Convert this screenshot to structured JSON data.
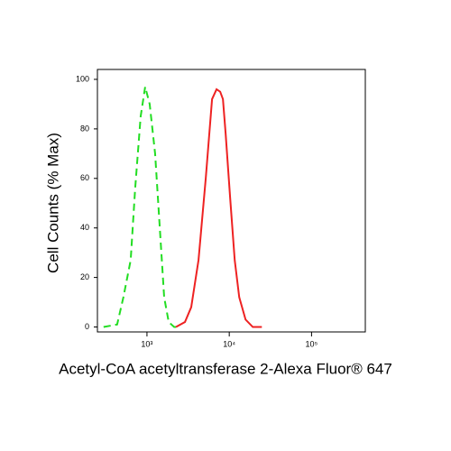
{
  "chart_data": {
    "type": "line",
    "x_label": "Acetyl-CoA acetyltransferase 2-Alexa Fluor® 647",
    "y_label": "Cell Counts (% Max)",
    "x_scale": "log",
    "xlim": [
      250,
      450000
    ],
    "ylim": [
      -2,
      104
    ],
    "xticks": [
      {
        "value": 1000,
        "label": "10³"
      },
      {
        "value": 10000,
        "label": "10⁴"
      },
      {
        "value": 100000,
        "label": "10⁵"
      }
    ],
    "yticks": [
      0,
      20,
      40,
      60,
      80,
      100
    ],
    "series": [
      {
        "color": "#22dd22",
        "line_style": "dashed",
        "x": [
          297,
          434,
          517,
          634,
          719,
          838,
          951,
          1079,
          1256,
          1426,
          1618,
          1837,
          2140,
          2550
        ],
        "values": [
          0,
          1,
          12,
          27,
          56,
          85,
          97,
          90,
          70,
          41,
          12,
          2,
          0,
          0
        ]
      },
      {
        "color": "#ee2222",
        "line_style": "solid",
        "x": [
          2250,
          2895,
          3450,
          4230,
          5180,
          6180,
          7010,
          7760,
          8380,
          9040,
          10260,
          11650,
          13220,
          15780,
          19320,
          24900
        ],
        "values": [
          0,
          2,
          8,
          27,
          60,
          92,
          96,
          95,
          92,
          78,
          52,
          27,
          12,
          3,
          0,
          0
        ]
      }
    ]
  }
}
